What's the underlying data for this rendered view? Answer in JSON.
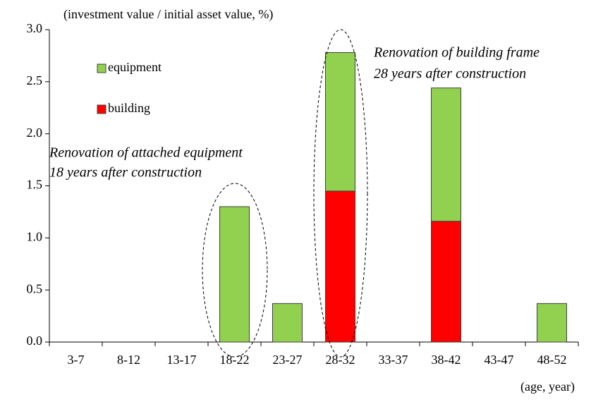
{
  "chart_data": {
    "type": "stacked_bar",
    "y_axis_label": "(investment value / initial asset value, %)",
    "x_axis_label": "(age, year)",
    "categories": [
      "3-7",
      "8-12",
      "13-17",
      "18-22",
      "23-27",
      "28-32",
      "33-37",
      "38-42",
      "43-47",
      "48-52"
    ],
    "series": [
      {
        "name": "building",
        "color": "#ff0000",
        "values": [
          0,
          0,
          0,
          0,
          0,
          1.45,
          0,
          1.16,
          0,
          0
        ]
      },
      {
        "name": "equipment",
        "color": "#92d050",
        "values": [
          0,
          0,
          0,
          1.3,
          0.37,
          1.33,
          0,
          1.28,
          0,
          0.37
        ]
      }
    ],
    "ylim": [
      0,
      3
    ],
    "yticks": [
      {
        "value": 0,
        "label": "0.0"
      },
      0.5,
      {
        "value": 1,
        "label": "1.0"
      },
      1.5,
      {
        "value": 2,
        "label": "2.0"
      },
      2.5,
      {
        "value": 3,
        "label": "3.0"
      }
    ],
    "annotations": [
      "Renovation of building frame",
      "28 years after construction",
      "Renovation of attached equipment",
      "18 years after construction"
    ]
  }
}
